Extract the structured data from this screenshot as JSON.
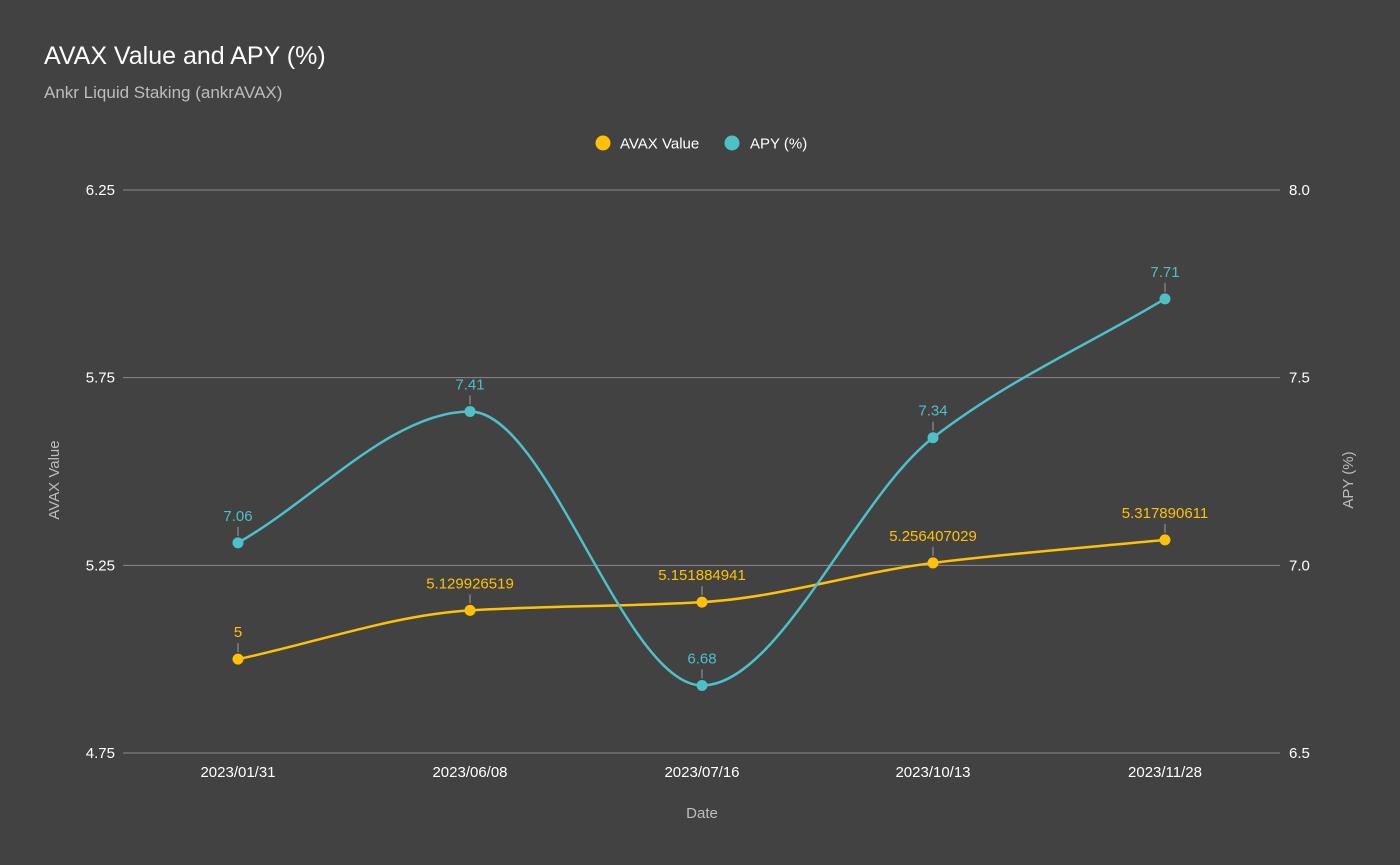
{
  "chart_data": {
    "type": "line",
    "title": "AVAX Value and APY (%)",
    "subtitle": "Ankr Liquid Staking (ankrAVAX)",
    "categories": [
      "2023/01/31",
      "2023/06/08",
      "2023/07/16",
      "2023/10/13",
      "2023/11/28"
    ],
    "xlabel": "Date",
    "y_left": {
      "label": "AVAX Value",
      "range": [
        4.75,
        6.25
      ],
      "ticks": [
        "4.75",
        "5.25",
        "5.75",
        "6.25"
      ]
    },
    "y_right": {
      "label": "APY (%)",
      "range": [
        6.5,
        8.0
      ],
      "ticks": [
        "6.5",
        "7.0",
        "7.5",
        "8.0"
      ]
    },
    "series": [
      {
        "name": "AVAX Value",
        "axis": "left",
        "color": "#FFC107",
        "values": [
          5,
          5.129926519,
          5.151884941,
          5.256407029,
          5.317890611
        ],
        "labels": [
          "5",
          "5.129926519",
          "5.151884941",
          "5.256407029",
          "5.317890611"
        ]
      },
      {
        "name": "APY (%)",
        "axis": "right",
        "color": "#4DC0C8",
        "values": [
          7.06,
          7.41,
          6.68,
          7.34,
          7.71
        ],
        "labels": [
          "7.06",
          "7.41",
          "6.68",
          "7.34",
          "7.71"
        ]
      }
    ],
    "legend": "top-center",
    "grid": true,
    "smooth": true
  },
  "colors": {
    "background": "#424242",
    "grid": "#8a8a8a",
    "text": "#ffffff",
    "muted_text": "#bdbdbd"
  }
}
